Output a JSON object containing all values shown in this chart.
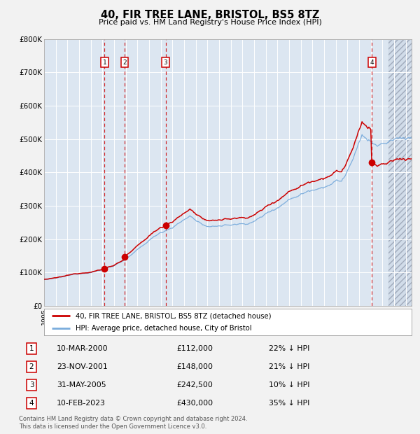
{
  "title": "40, FIR TREE LANE, BRISTOL, BS5 8TZ",
  "subtitle": "Price paid vs. HM Land Registry's House Price Index (HPI)",
  "xlim": [
    1995.0,
    2026.5
  ],
  "ylim": [
    0,
    800000
  ],
  "yticks": [
    0,
    100000,
    200000,
    300000,
    400000,
    500000,
    600000,
    700000,
    800000
  ],
  "ytick_labels": [
    "£0",
    "£100K",
    "£200K",
    "£300K",
    "£400K",
    "£500K",
    "£600K",
    "£700K",
    "£800K"
  ],
  "sale_dates": [
    2000.19,
    2001.9,
    2005.41,
    2023.11
  ],
  "sale_prices": [
    112000,
    148000,
    242500,
    430000
  ],
  "sale_labels": [
    "1",
    "2",
    "3",
    "4"
  ],
  "legend_red": "40, FIR TREE LANE, BRISTOL, BS5 8TZ (detached house)",
  "legend_blue": "HPI: Average price, detached house, City of Bristol",
  "table_entries": [
    [
      "1",
      "10-MAR-2000",
      "£112,000",
      "22% ↓ HPI"
    ],
    [
      "2",
      "23-NOV-2001",
      "£148,000",
      "21% ↓ HPI"
    ],
    [
      "3",
      "31-MAY-2005",
      "£242,500",
      "10% ↓ HPI"
    ],
    [
      "4",
      "10-FEB-2023",
      "£430,000",
      "35% ↓ HPI"
    ]
  ],
  "footer": "Contains HM Land Registry data © Crown copyright and database right 2024.\nThis data is licensed under the Open Government Licence v3.0.",
  "hpi_color": "#7aacdc",
  "sale_color": "#cc0000",
  "plot_bg": "#dce6f1",
  "grid_color": "#ffffff",
  "label_box_color": "#cc0000",
  "fig_bg": "#f2f2f2",
  "hatch_start": 2024.5,
  "xtick_start": 1995,
  "xtick_end": 2027
}
